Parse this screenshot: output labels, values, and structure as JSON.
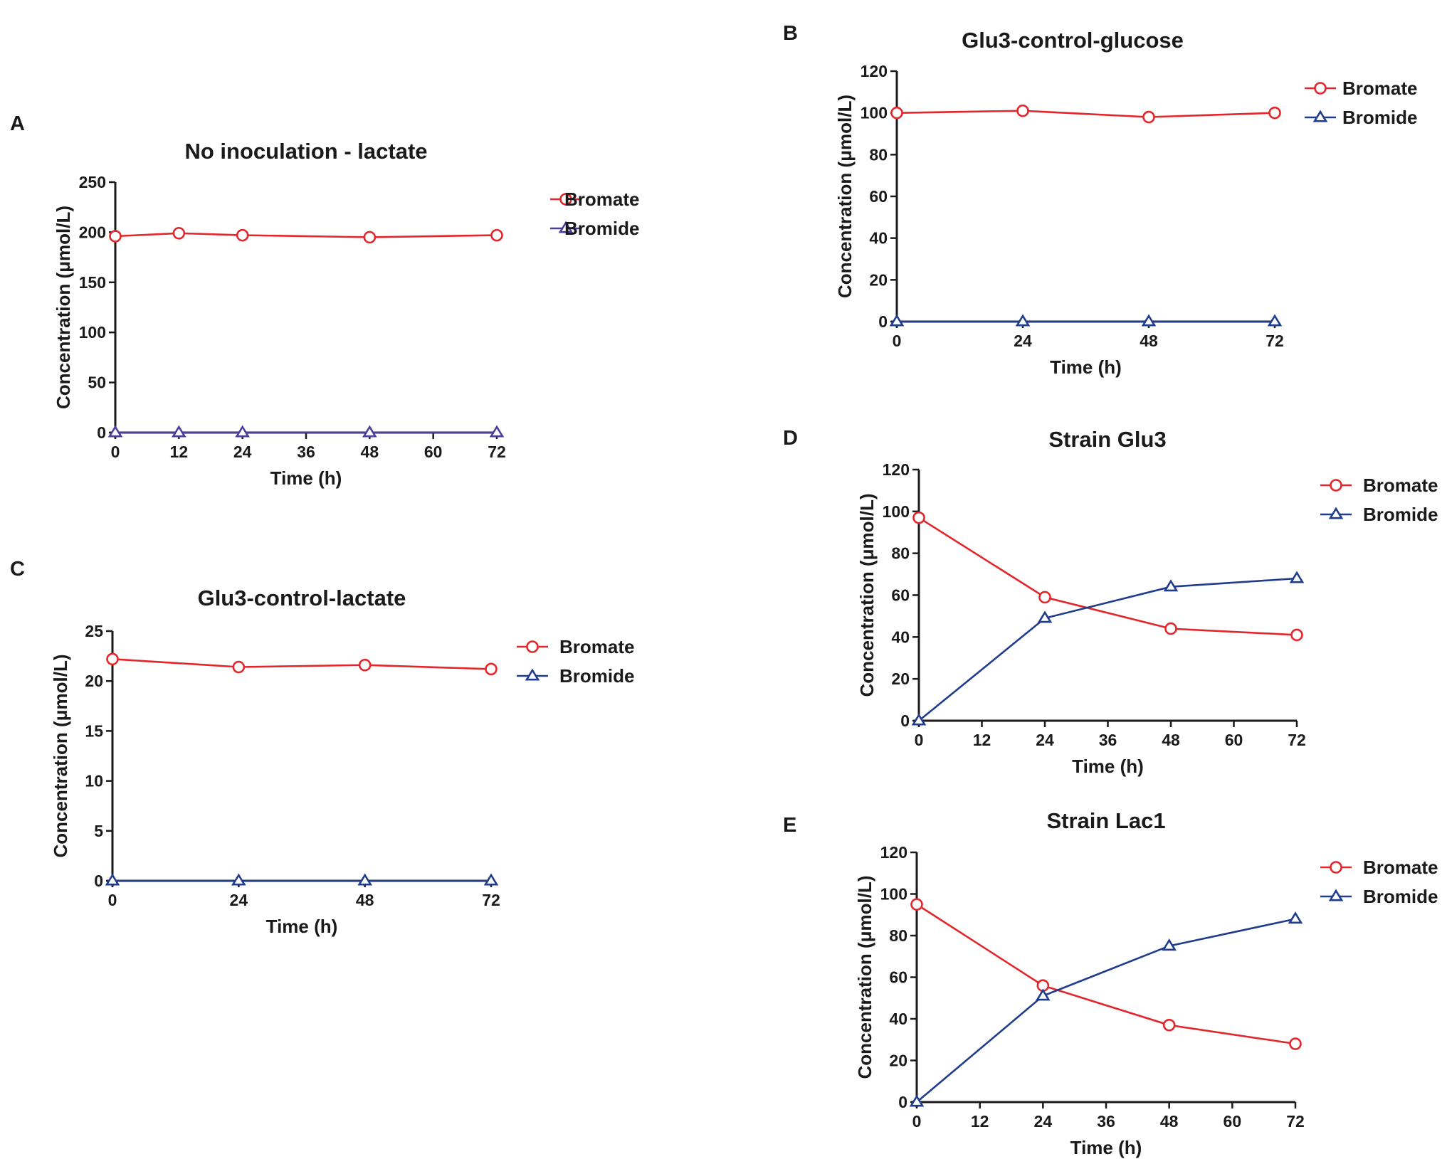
{
  "figure": {
    "units_glyph": "μ",
    "colors": {
      "bromate": "#e3262b",
      "bromide_dark": "#1f3d8c",
      "bromide_purple": "#4a3f9c"
    }
  },
  "chart_data": [
    {
      "id": "A",
      "panel_label": "A",
      "type": "line",
      "title": "No inoculation - lactate",
      "xlabel": "Time (h)",
      "ylabel": "Concentration (μmol/L)",
      "xlim": [
        0,
        72
      ],
      "ylim": [
        0,
        250
      ],
      "xticks": [
        0,
        12,
        24,
        36,
        48,
        60,
        72
      ],
      "yticks": [
        0,
        50,
        100,
        150,
        200,
        250
      ],
      "grid": false,
      "legend_position": "top-right",
      "series": [
        {
          "name": "Bromate",
          "marker": "circle",
          "color": "#e3262b",
          "x": [
            0,
            12,
            24,
            48,
            72
          ],
          "values": [
            196,
            199,
            197,
            195,
            197
          ]
        },
        {
          "name": "Bromide",
          "marker": "triangle",
          "color": "#4a3f9c",
          "x": [
            0,
            12,
            24,
            48,
            72
          ],
          "values": [
            0,
            0,
            0,
            0,
            0
          ]
        }
      ]
    },
    {
      "id": "B",
      "panel_label": "B",
      "type": "line",
      "title": "Glu3-control-glucose",
      "xlabel": "Time (h)",
      "ylabel": "Concentration (μmol/L)",
      "xlim": [
        0,
        72
      ],
      "ylim": [
        0,
        120
      ],
      "xticks": [
        0,
        24,
        48,
        72
      ],
      "yticks": [
        0,
        20,
        40,
        60,
        80,
        100,
        120
      ],
      "grid": false,
      "legend_position": "top-right",
      "series": [
        {
          "name": "Bromate",
          "marker": "circle",
          "color": "#e3262b",
          "x": [
            0,
            24,
            48,
            72
          ],
          "values": [
            100,
            101,
            98,
            100
          ]
        },
        {
          "name": "Bromide",
          "marker": "triangle",
          "color": "#1f3d8c",
          "x": [
            0,
            24,
            48,
            72
          ],
          "values": [
            0,
            0,
            0,
            0
          ]
        }
      ]
    },
    {
      "id": "C",
      "panel_label": "C",
      "type": "line",
      "title": "Glu3-control-lactate",
      "xlabel": "Time (h)",
      "ylabel": "Concentration (μmol/L)",
      "xlim": [
        0,
        72
      ],
      "ylim": [
        0,
        25
      ],
      "xticks": [
        0,
        24,
        48,
        72
      ],
      "yticks": [
        0,
        5,
        10,
        15,
        20,
        25
      ],
      "grid": false,
      "legend_position": "top-right",
      "series": [
        {
          "name": "Bromate",
          "marker": "circle",
          "color": "#e3262b",
          "x": [
            0,
            24,
            48,
            72
          ],
          "values": [
            22.2,
            21.4,
            21.6,
            21.2
          ]
        },
        {
          "name": "Bromide",
          "marker": "triangle",
          "color": "#1f3d8c",
          "x": [
            0,
            24,
            48,
            72
          ],
          "values": [
            0,
            0,
            0,
            0
          ]
        }
      ]
    },
    {
      "id": "D",
      "panel_label": "D",
      "type": "line",
      "title": "Strain Glu3",
      "xlabel": "Time (h)",
      "ylabel": "Concentration (μmol/L)",
      "xlim": [
        0,
        72
      ],
      "ylim": [
        0,
        120
      ],
      "xticks": [
        0,
        12,
        24,
        36,
        48,
        60,
        72
      ],
      "yticks": [
        0,
        20,
        40,
        60,
        80,
        100,
        120
      ],
      "grid": false,
      "legend_position": "top-right",
      "series": [
        {
          "name": "Bromate",
          "marker": "circle",
          "color": "#e3262b",
          "x": [
            0,
            24,
            48,
            72
          ],
          "values": [
            97,
            59,
            44,
            41
          ]
        },
        {
          "name": "Bromide",
          "marker": "triangle",
          "color": "#1f3d8c",
          "x": [
            0,
            24,
            48,
            72
          ],
          "values": [
            0,
            49,
            64,
            68
          ]
        }
      ]
    },
    {
      "id": "E",
      "panel_label": "E",
      "type": "line",
      "title": "Strain Lac1",
      "xlabel": "Time (h)",
      "ylabel": "Concentration (μmol/L)",
      "xlim": [
        0,
        72
      ],
      "ylim": [
        0,
        120
      ],
      "xticks": [
        0,
        12,
        24,
        36,
        48,
        60,
        72
      ],
      "yticks": [
        0,
        20,
        40,
        60,
        80,
        100,
        120
      ],
      "grid": false,
      "legend_position": "top-right",
      "series": [
        {
          "name": "Bromate",
          "marker": "circle",
          "color": "#e3262b",
          "x": [
            0,
            24,
            48,
            72
          ],
          "values": [
            95,
            56,
            37,
            28
          ]
        },
        {
          "name": "Bromide",
          "marker": "triangle",
          "color": "#1f3d8c",
          "x": [
            0,
            24,
            48,
            72
          ],
          "values": [
            0,
            51,
            75,
            88
          ]
        }
      ]
    }
  ]
}
